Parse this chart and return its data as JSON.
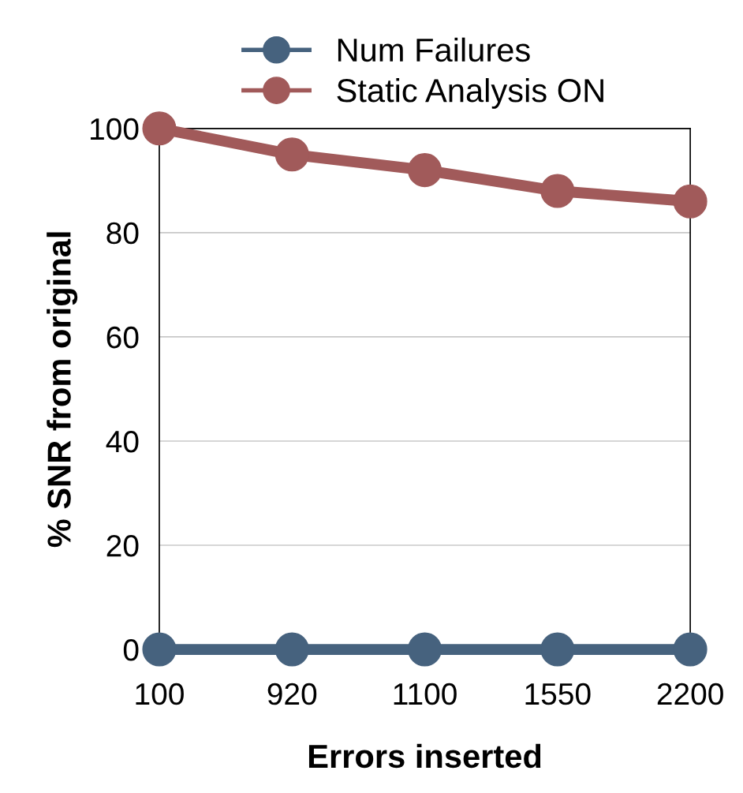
{
  "chart_data": {
    "type": "line",
    "xlabel": "Errors inserted",
    "ylabel": "% SNR from original",
    "categories": [
      "100",
      "920",
      "1100",
      "1550",
      "2200"
    ],
    "series": [
      {
        "name": "Num Failures",
        "color": "#46627e",
        "values": [
          0,
          0,
          0,
          0,
          0
        ]
      },
      {
        "name": "Static Analysis ON",
        "color": "#a15a5a",
        "values": [
          100,
          95,
          92,
          88,
          86
        ]
      }
    ],
    "ylim": [
      0,
      100
    ],
    "yticks": [
      0,
      20,
      40,
      60,
      80,
      100
    ],
    "grid": "y",
    "legend": "top",
    "marker": "circle",
    "line_style": "solid"
  }
}
